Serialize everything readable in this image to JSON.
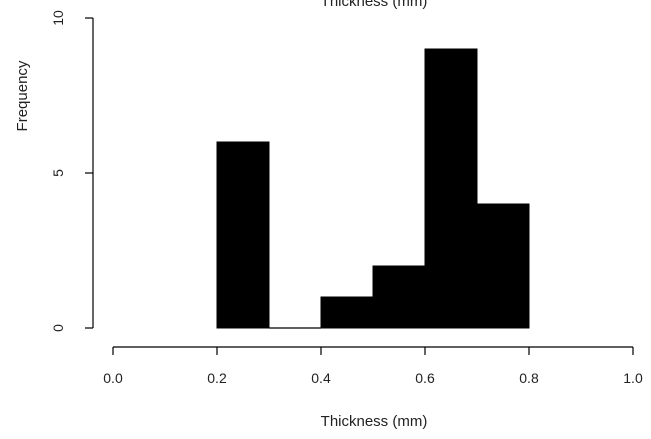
{
  "chart_data": {
    "type": "bar",
    "title": "Thickness (mm)",
    "xlabel": "Thickness (mm)",
    "ylabel": "Frequency",
    "xlim": [
      0.0,
      1.0
    ],
    "ylim": [
      0,
      10
    ],
    "x_ticks": [
      "0.0",
      "0.2",
      "0.4",
      "0.6",
      "0.8",
      "1.0"
    ],
    "y_ticks": [
      "0",
      "5",
      "10"
    ],
    "bins": [
      {
        "start": 0.2,
        "end": 0.3,
        "count": 6
      },
      {
        "start": 0.3,
        "end": 0.4,
        "count": 0
      },
      {
        "start": 0.4,
        "end": 0.5,
        "count": 1
      },
      {
        "start": 0.5,
        "end": 0.6,
        "count": 2
      },
      {
        "start": 0.6,
        "end": 0.7,
        "count": 9
      },
      {
        "start": 0.7,
        "end": 0.8,
        "count": 4
      }
    ],
    "bar_color": "#000000",
    "grid": false,
    "legend": "none"
  }
}
